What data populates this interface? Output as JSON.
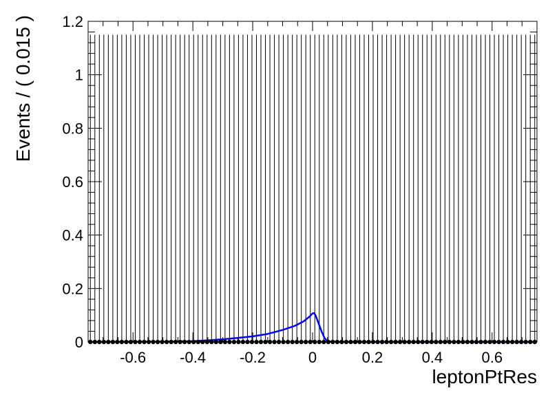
{
  "chart_data": {
    "type": "scatter",
    "title": "",
    "xlabel": "leptonPtRes",
    "ylabel": "Events / ( 0.015 )",
    "xlim": [
      -0.75,
      0.75
    ],
    "ylim": [
      0,
      1.2
    ],
    "bin_width": 0.015,
    "x_ticks": [
      -0.6,
      -0.4,
      -0.2,
      0,
      0.2,
      0.4,
      0.6
    ],
    "x_tick_labels": [
      "-0.6",
      "-0.4",
      "-0.2",
      "0",
      "0.2",
      "0.4",
      "0.6"
    ],
    "y_ticks": [
      0,
      0.2,
      0.4,
      0.6,
      0.8,
      1,
      1.2
    ],
    "y_tick_labels": [
      "0",
      "0.2",
      "0.4",
      "0.6",
      "0.8",
      "1",
      "1.2"
    ],
    "data_points": {
      "color": "#000000",
      "y_value": 0,
      "error_bar_upper": 1.15,
      "note_marker": "filled-circle"
    },
    "model_curve": {
      "color": "#0000ff",
      "x": [
        -0.75,
        -0.5,
        -0.4,
        -0.35,
        -0.3,
        -0.25,
        -0.2,
        -0.15,
        -0.1,
        -0.06,
        -0.03,
        -0.01,
        0.0,
        0.005,
        0.01,
        0.02,
        0.03,
        0.04,
        0.05,
        0.1,
        0.75
      ],
      "y": [
        0,
        0.001,
        0.003,
        0.006,
        0.01,
        0.015,
        0.021,
        0.03,
        0.045,
        0.06,
        0.077,
        0.095,
        0.107,
        0.108,
        0.1,
        0.07,
        0.04,
        0.015,
        0.002,
        0,
        0
      ]
    },
    "grid": false,
    "legend": "none"
  }
}
